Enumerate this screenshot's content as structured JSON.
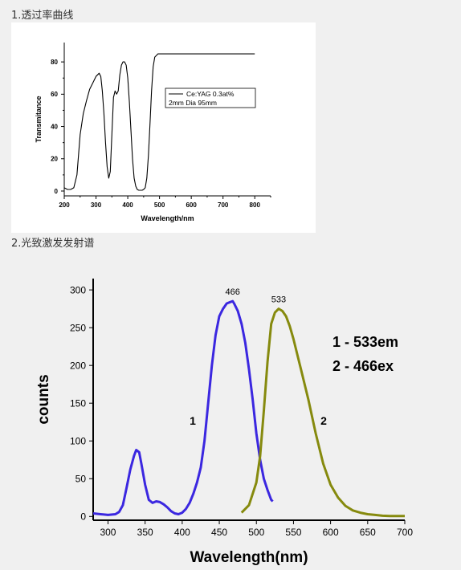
{
  "sections": [
    {
      "heading": "1.透过率曲线"
    },
    {
      "heading": "2.光致激发发射谱"
    }
  ],
  "chart_data": [
    {
      "type": "line",
      "xlabel": "Wavelength/nm",
      "ylabel": "Transmitance",
      "xlim": [
        200,
        850
      ],
      "ylim": [
        -3,
        92
      ],
      "xticks": [
        200,
        300,
        400,
        500,
        600,
        700,
        800
      ],
      "yticks": [
        0,
        20,
        40,
        60,
        80
      ],
      "grid": false,
      "legend": {
        "position": "right",
        "entries": [
          "Ce:YAG 0.3at%"
        ],
        "note": "2mm   Dia 95mm"
      },
      "series": [
        {
          "name": "Ce:YAG 0.3at%",
          "color": "#000000",
          "x": [
            200,
            210,
            220,
            230,
            240,
            250,
            260,
            270,
            280,
            290,
            300,
            305,
            310,
            315,
            320,
            325,
            330,
            335,
            340,
            345,
            350,
            355,
            360,
            365,
            370,
            375,
            380,
            385,
            390,
            395,
            400,
            405,
            410,
            415,
            420,
            425,
            430,
            435,
            440,
            445,
            450,
            455,
            460,
            465,
            470,
            475,
            480,
            485,
            490,
            495,
            500,
            505,
            510,
            515,
            520,
            530,
            550,
            600,
            650,
            700,
            750,
            800
          ],
          "y": [
            2,
            1,
            1,
            2,
            10,
            35,
            48,
            56,
            63,
            67,
            71,
            72,
            73,
            71,
            62,
            48,
            30,
            15,
            8,
            12,
            35,
            58,
            62,
            60,
            62,
            72,
            78,
            80,
            80,
            78,
            70,
            55,
            38,
            20,
            8,
            3,
            1,
            0.5,
            0.5,
            0.5,
            1,
            2,
            8,
            22,
            42,
            62,
            77,
            83,
            84,
            85,
            85,
            85,
            85,
            85,
            85,
            85,
            85,
            85,
            85,
            85,
            85,
            85
          ]
        }
      ]
    },
    {
      "type": "line",
      "xlabel": "Wavelength(nm)",
      "ylabel": "counts",
      "xlim": [
        280,
        700
      ],
      "ylim": [
        -5,
        315
      ],
      "xticks": [
        300,
        350,
        400,
        450,
        500,
        550,
        600,
        650,
        700
      ],
      "yticks": [
        0,
        50,
        100,
        150,
        200,
        250,
        300
      ],
      "grid": false,
      "legend_text": [
        "1 - 533em",
        "2 - 466ex"
      ],
      "series": [
        {
          "name": "1",
          "color": "#3b27e0",
          "peak_label": "466",
          "x": [
            280,
            290,
            300,
            310,
            315,
            320,
            325,
            330,
            335,
            338,
            342,
            345,
            350,
            355,
            360,
            365,
            370,
            375,
            380,
            385,
            390,
            395,
            400,
            405,
            410,
            415,
            420,
            425,
            430,
            435,
            440,
            445,
            450,
            455,
            460,
            465,
            468,
            470,
            475,
            480,
            485,
            490,
            495,
            500,
            505,
            510,
            515,
            520,
            522
          ],
          "y": [
            4,
            3,
            2,
            3,
            6,
            15,
            38,
            62,
            80,
            88,
            85,
            70,
            42,
            22,
            18,
            20,
            19,
            16,
            12,
            7,
            4,
            3,
            5,
            10,
            18,
            30,
            45,
            65,
            100,
            150,
            200,
            240,
            265,
            275,
            282,
            284,
            285,
            282,
            272,
            255,
            230,
            195,
            155,
            110,
            75,
            50,
            35,
            22,
            20
          ]
        },
        {
          "name": "2",
          "color": "#868a0e",
          "peak_label": "533",
          "x": [
            480,
            490,
            500,
            505,
            510,
            515,
            520,
            525,
            530,
            535,
            540,
            545,
            550,
            560,
            570,
            580,
            590,
            600,
            610,
            620,
            630,
            640,
            650,
            660,
            670,
            680,
            690,
            700
          ],
          "y": [
            5,
            15,
            45,
            80,
            140,
            205,
            255,
            270,
            275,
            272,
            265,
            252,
            235,
            195,
            155,
            110,
            70,
            42,
            25,
            14,
            8,
            5,
            3,
            2,
            1,
            0.5,
            0.5,
            0.5
          ]
        }
      ]
    }
  ]
}
